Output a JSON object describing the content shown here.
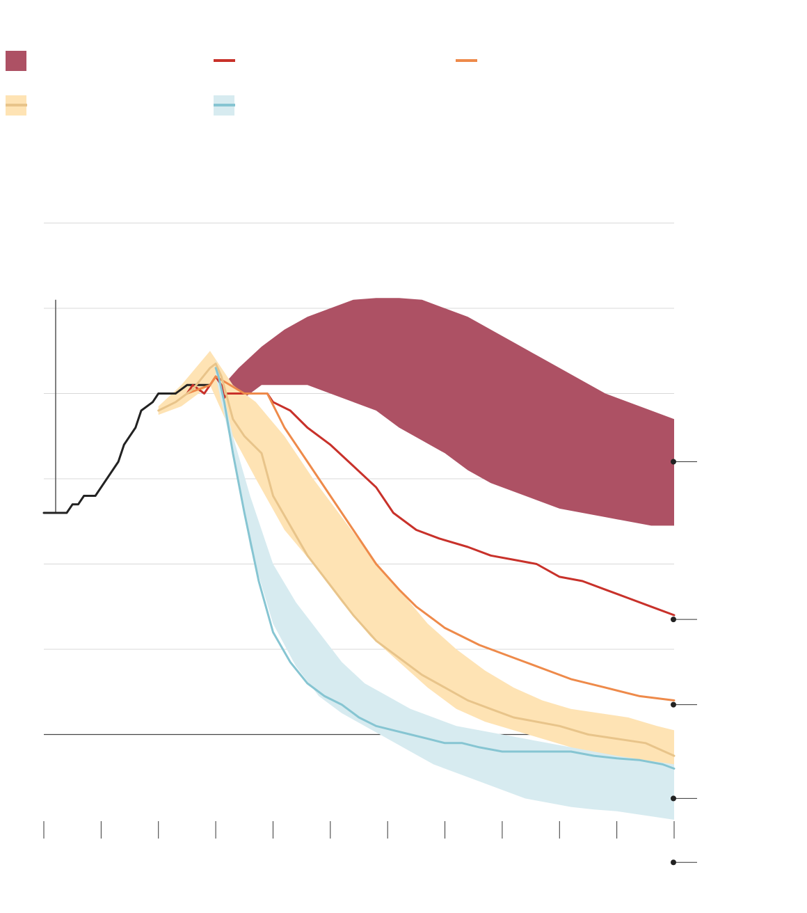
{
  "chart_data": {
    "type": "line",
    "title": "",
    "xlabel": "",
    "ylabel": "",
    "x_ticks": 12,
    "y_gridlines": [
      0,
      1,
      2,
      3,
      4,
      5,
      6,
      7
    ],
    "baseline_gridline": 1,
    "legend_placement": "top",
    "legend": [
      {
        "key": "upper_band",
        "kind": "band",
        "color": "#ad5164",
        "label": ""
      },
      {
        "key": "red_line",
        "kind": "line",
        "color": "#c8312a",
        "label": ""
      },
      {
        "key": "orange_line",
        "kind": "line",
        "color": "#ee8a4a",
        "label": ""
      },
      {
        "key": "yellow",
        "kind": "line-band",
        "color": "#e8c48a",
        "band_color": "#fee3b4",
        "label": ""
      },
      {
        "key": "blue",
        "kind": "line-band",
        "color": "#86c5d2",
        "band_color": "#d7ebf0",
        "label": ""
      }
    ],
    "series": [
      {
        "key": "historical",
        "color": "#222222",
        "x": [
          0,
          0.4,
          0.5,
          0.6,
          0.7,
          0.9,
          1.1,
          1.3,
          1.4,
          1.6,
          1.7,
          1.9,
          2.0,
          2.3,
          2.5,
          2.9
        ],
        "y": [
          3.6,
          3.6,
          3.7,
          3.7,
          3.8,
          3.8,
          4.0,
          4.2,
          4.4,
          4.6,
          4.8,
          4.9,
          5.0,
          5.0,
          5.1,
          5.1
        ]
      },
      {
        "key": "red_line",
        "color": "#c8312a",
        "x": [
          2.5,
          2.6,
          2.8,
          2.9,
          3.0,
          3.1,
          3.15,
          3.2,
          3.5,
          3.9,
          4.0,
          4.3,
          4.6,
          5.0,
          5.4,
          5.8,
          6.1,
          6.5,
          6.9,
          7.4,
          7.8,
          8.2,
          8.6,
          9.0,
          9.4,
          9.8,
          10.2,
          10.6,
          11.0
        ],
        "y": [
          5.0,
          5.1,
          5.0,
          5.1,
          5.2,
          5.1,
          4.95,
          5.0,
          5.0,
          5.0,
          4.9,
          4.8,
          4.6,
          4.4,
          4.15,
          3.9,
          3.6,
          3.4,
          3.3,
          3.2,
          3.1,
          3.05,
          3.0,
          2.85,
          2.8,
          2.7,
          2.6,
          2.5,
          2.4
        ]
      },
      {
        "key": "orange_line",
        "color": "#ee8a4a",
        "x": [
          2.5,
          2.9,
          3.0,
          3.5,
          3.9,
          4.2,
          4.6,
          5.0,
          5.4,
          5.8,
          6.2,
          6.5,
          6.8,
          7.0,
          7.3,
          7.6,
          8.0,
          8.4,
          8.8,
          9.2,
          9.8,
          10.4,
          11.0
        ],
        "y": [
          5.0,
          5.1,
          5.2,
          5.0,
          5.0,
          4.6,
          4.2,
          3.8,
          3.4,
          3.0,
          2.7,
          2.5,
          2.35,
          2.25,
          2.15,
          2.05,
          1.95,
          1.85,
          1.75,
          1.65,
          1.55,
          1.45,
          1.4
        ]
      },
      {
        "key": "yellow_line",
        "color": "#e8c48a",
        "x": [
          2.0,
          2.3,
          2.6,
          2.9,
          3.0,
          3.1,
          3.3,
          3.5,
          3.8,
          4.0,
          4.3,
          4.6,
          5.0,
          5.4,
          5.8,
          6.2,
          6.6,
          7.0,
          7.4,
          7.8,
          8.2,
          8.6,
          9.0,
          9.5,
          10.0,
          10.5,
          11.0
        ],
        "y": [
          4.8,
          4.9,
          5.05,
          5.3,
          5.35,
          5.2,
          4.7,
          4.5,
          4.3,
          3.8,
          3.45,
          3.1,
          2.75,
          2.4,
          2.1,
          1.9,
          1.7,
          1.55,
          1.4,
          1.3,
          1.2,
          1.15,
          1.1,
          1.0,
          0.95,
          0.9,
          0.75
        ]
      },
      {
        "key": "blue_line",
        "color": "#86c5d2",
        "x": [
          3.0,
          3.05,
          3.15,
          3.3,
          3.5,
          3.75,
          4.0,
          4.3,
          4.6,
          4.9,
          5.2,
          5.5,
          5.8,
          6.1,
          6.4,
          6.7,
          7.0,
          7.3,
          7.6,
          8.0,
          8.4,
          8.8,
          9.2,
          9.6,
          10.0,
          10.4,
          10.8,
          11.0
        ],
        "y": [
          5.3,
          5.2,
          4.9,
          4.3,
          3.6,
          2.8,
          2.2,
          1.85,
          1.6,
          1.45,
          1.35,
          1.2,
          1.1,
          1.05,
          1.0,
          0.95,
          0.9,
          0.9,
          0.85,
          0.8,
          0.8,
          0.8,
          0.8,
          0.75,
          0.72,
          0.7,
          0.65,
          0.6
        ]
      }
    ],
    "bands": [
      {
        "key": "upper_band",
        "color": "#ad5164",
        "x": [
          3.0,
          3.4,
          3.8,
          4.2,
          4.6,
          5.0,
          5.4,
          5.8,
          6.2,
          6.6,
          7.0,
          7.4,
          7.8,
          8.2,
          8.6,
          9.0,
          9.4,
          9.8,
          10.2,
          10.6,
          11.0
        ],
        "upper": [
          5.0,
          5.3,
          5.55,
          5.75,
          5.9,
          6.0,
          6.1,
          6.12,
          6.12,
          6.1,
          6.0,
          5.9,
          5.75,
          5.6,
          5.45,
          5.3,
          5.15,
          5.0,
          4.9,
          4.8,
          4.7
        ],
        "lower": [
          5.0,
          4.9,
          5.1,
          5.1,
          5.1,
          5.0,
          4.9,
          4.8,
          4.6,
          4.45,
          4.3,
          4.1,
          3.95,
          3.85,
          3.75,
          3.65,
          3.6,
          3.55,
          3.5,
          3.45,
          3.45
        ]
      },
      {
        "key": "yellow_band",
        "color": "#fee3b4",
        "x": [
          2.0,
          2.4,
          2.9,
          3.3,
          3.7,
          4.2,
          4.7,
          5.2,
          5.7,
          6.2,
          6.7,
          7.2,
          7.7,
          8.2,
          8.7,
          9.2,
          9.7,
          10.2,
          10.7,
          11.0
        ],
        "upper": [
          4.85,
          5.1,
          5.5,
          5.1,
          4.9,
          4.5,
          4.0,
          3.55,
          3.1,
          2.7,
          2.3,
          2.0,
          1.75,
          1.55,
          1.4,
          1.3,
          1.25,
          1.2,
          1.1,
          1.05
        ],
        "lower": [
          4.75,
          4.85,
          5.1,
          4.5,
          4.0,
          3.4,
          3.0,
          2.55,
          2.15,
          1.85,
          1.55,
          1.3,
          1.15,
          1.05,
          0.95,
          0.85,
          0.75,
          0.6,
          0.45,
          0.35
        ]
      },
      {
        "key": "blue_band",
        "color": "#d7ebf0",
        "x": [
          3.0,
          3.3,
          3.6,
          4.0,
          4.4,
          4.8,
          5.2,
          5.6,
          6.0,
          6.4,
          6.8,
          7.2,
          7.6,
          8.0,
          8.4,
          8.8,
          9.2,
          9.6,
          10.0,
          10.5,
          11.0
        ],
        "upper": [
          5.4,
          4.5,
          3.8,
          3.0,
          2.55,
          2.2,
          1.85,
          1.6,
          1.45,
          1.3,
          1.2,
          1.1,
          1.05,
          1.0,
          0.95,
          0.9,
          0.85,
          0.8,
          0.75,
          0.7,
          0.65
        ],
        "lower": [
          5.2,
          4.3,
          3.2,
          2.3,
          1.8,
          1.45,
          1.25,
          1.1,
          0.95,
          0.8,
          0.65,
          0.55,
          0.45,
          0.35,
          0.25,
          0.2,
          0.15,
          0.12,
          0.1,
          0.05,
          0.0
        ]
      }
    ],
    "end_markers": [
      4.2,
      2.35,
      1.35,
      0.25,
      -0.5
    ]
  }
}
